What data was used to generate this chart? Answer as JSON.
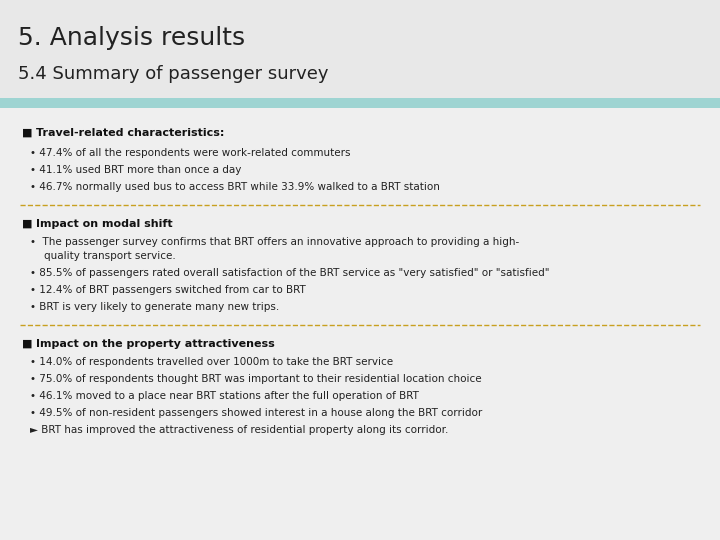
{
  "title1": "5. Analysis results",
  "title2": "5.4 Summary of passenger survey",
  "bg_color": "#d8d8d8",
  "header_bg": "#e8e8e8",
  "content_bg": "#efefef",
  "teal_bar_color": "#9ed4d2",
  "divider_color": "#c8a020",
  "title1_size": 18,
  "title2_size": 13,
  "body_size": 7.5,
  "header_size": 8,
  "section1_header": "Travel-related characteristics:",
  "section1_bullets": [
    "47.4% of all the respondents were work-related commuters",
    "41.1% used BRT more than once a day",
    "46.7% normally used bus to access BRT while 33.9% walked to a BRT station"
  ],
  "section2_header": "Impact on modal shift",
  "section2_bullet1a": "The passenger survey confirms that BRT offers an innovative approach to providing a high-",
  "section2_bullet1b": "quality transport service.",
  "section2_bullets_rest": [
    "85.5% of passengers rated overall satisfaction of the BRT service as \"very satisfied\" or \"satisfied\"",
    "12.4% of BRT passengers switched from car to BRT",
    "BRT is very likely to generate many new trips."
  ],
  "section3_header": "Impact on the property attractiveness",
  "section3_bullets": [
    "14.0% of respondents travelled over 1000m to take the BRT service",
    "75.0% of respondents thought BRT was important to their residential location choice",
    "46.1% moved to a place near BRT stations after the full operation of BRT",
    "49.5% of non-resident passengers showed interest in a house along the BRT corridor"
  ],
  "section3_last": "BRT has improved the attractiveness of residential property along its corridor."
}
